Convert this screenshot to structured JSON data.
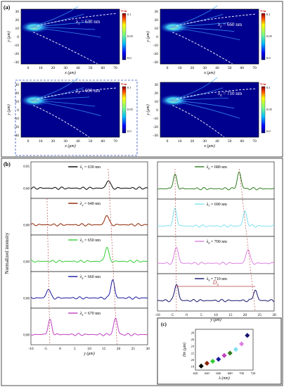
{
  "panel_a": {
    "label": "(a)",
    "xlabel": "x (μm)",
    "ylabel": "y (μm)",
    "x_ticks": [
      "0",
      "10",
      "20",
      "30",
      "40",
      "50",
      "60",
      "70"
    ],
    "y_ticks": [
      "30",
      "20",
      "10",
      "0",
      "-10",
      "-20",
      "-30"
    ],
    "colorbar": {
      "unit": "V/m",
      "ticks": [
        "0.1",
        "0.05",
        "0.0"
      ]
    },
    "maps": [
      {
        "wavelength": "λ1 = 630 nm",
        "lambda_nm": 630
      },
      {
        "wavelength": "λ2 = 660 nm",
        "lambda_nm": 660
      },
      {
        "wavelength": "λ3 = 690 nm",
        "lambda_nm": 690
      },
      {
        "wavelength": "λ4 = 710 nm",
        "lambda_nm": 710
      }
    ]
  },
  "panel_b": {
    "label": "(b)",
    "ylabel": "Normalized intensity",
    "xlabel": "y (μm)",
    "x_ticks": [
      "-10",
      "-5",
      "0",
      "5",
      "10",
      "15",
      "20",
      "25",
      "30"
    ],
    "y_ticks": [
      "0.00",
      "0.05"
    ],
    "dn_label": "D",
    "dn_sub": "n",
    "left_traces": [
      {
        "legend": "λ1 = 630 nm",
        "color": "#000000",
        "peaks": [
          [
            16.5,
            0.8
          ]
        ]
      },
      {
        "legend": "λ2 = 640 nm",
        "color": "#8b2500",
        "peaks": [
          [
            16.0,
            1.0
          ]
        ]
      },
      {
        "legend": "λ3 = 650 nm",
        "color": "#33cc33",
        "peaks": [
          [
            16.0,
            1.4
          ]
        ]
      },
      {
        "legend": "λ4 = 660 nm",
        "color": "#1a1a9e",
        "peaks": [
          [
            -4.0,
            0.9
          ],
          [
            18.0,
            1.8
          ]
        ]
      },
      {
        "legend": "λ5 = 670 nm",
        "color": "#c040c0",
        "peaks": [
          [
            -3.5,
            1.4
          ],
          [
            19.0,
            1.6
          ]
        ]
      }
    ],
    "right_traces": [
      {
        "legend": "λ6 = 680 nm",
        "color": "#2e7d1e",
        "peaks": [
          [
            -4.0,
            1.3
          ],
          [
            18.0,
            1.6
          ]
        ]
      },
      {
        "legend": "λ7 = 690 nm",
        "color": "#7fe0f0",
        "peaks": [
          [
            -4.0,
            1.6
          ],
          [
            20.0,
            1.4
          ]
        ]
      },
      {
        "legend": "λ8 = 700 nm",
        "color": "#dd80e0",
        "peaks": [
          [
            -3.5,
            1.6
          ],
          [
            21.0,
            1.4
          ]
        ]
      },
      {
        "legend": "λ9 = 710 nm",
        "color": "#14146e",
        "peaks": [
          [
            -3.5,
            1.6
          ],
          [
            23.5,
            1.0
          ]
        ]
      }
    ]
  },
  "panel_c": {
    "label": "(c)",
    "xlabel": "λ (nm)",
    "ylabel": "Dn (μm)",
    "x_ticks": [
      "620",
      "640",
      "660",
      "680",
      "700",
      "720"
    ],
    "y_ticks": [
      "18",
      "20",
      "22",
      "24",
      "26",
      "28"
    ],
    "chart_data": {
      "type": "scatter",
      "x": [
        630,
        640,
        650,
        660,
        670,
        680,
        690,
        700,
        710
      ],
      "y": [
        18.2,
        19.0,
        19.6,
        20.2,
        21.3,
        22.0,
        23.1,
        24.7,
        27.2
      ],
      "colors": [
        "#000000",
        "#8b2500",
        "#33cc33",
        "#1a1a9e",
        "#c040c0",
        "#2e7d1e",
        "#7fe0f0",
        "#dd80e0",
        "#14146e"
      ],
      "xlim": [
        620,
        720
      ],
      "ylim": [
        17,
        29
      ]
    }
  }
}
